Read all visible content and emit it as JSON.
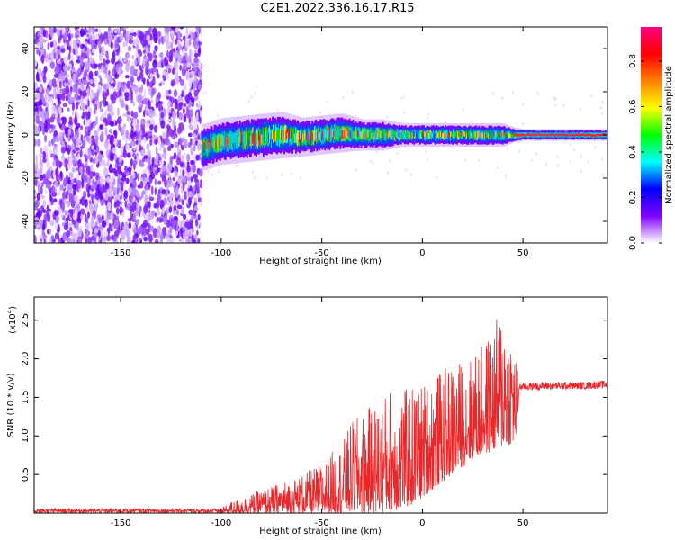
{
  "page_title": "C2E1.2022.336.16.17.R15",
  "chart_data": [
    {
      "type": "heatmap",
      "title": "C2E1.2022.336.16.17.R15",
      "xlabel": "Height of straight line (km)",
      "ylabel": "Frequency (Hz)",
      "xlim": [
        -193,
        92
      ],
      "ylim": [
        -50,
        50
      ],
      "xticks": [
        -150,
        -100,
        -50,
        0,
        50
      ],
      "yticks": [
        -40,
        -20,
        0,
        20,
        40
      ],
      "noise_region_x": [
        -193,
        -110
      ],
      "signal_band": {
        "x": [
          -110,
          -100,
          -90,
          -80,
          -70,
          -60,
          -50,
          -40,
          -30,
          -20,
          -10,
          0,
          10,
          20,
          30,
          40,
          45,
          50,
          60,
          70,
          80,
          90
        ],
        "center_hz": [
          -6,
          -3,
          -2,
          -1,
          0,
          -1,
          0,
          1,
          0,
          0,
          0,
          0,
          0,
          0,
          0,
          0,
          0,
          0,
          0,
          0,
          0,
          0
        ],
        "halfwidth_hz": [
          6,
          6,
          6,
          6,
          6,
          5,
          5,
          5,
          4,
          4,
          3,
          3,
          3,
          3,
          3,
          3,
          2,
          1.5,
          1.5,
          1.5,
          1.5,
          1.5
        ]
      },
      "colorbar": {
        "label": "Normalized spectral amplitude",
        "ticks": [
          0.0,
          0.2,
          0.4,
          0.6,
          0.8
        ],
        "colors": [
          "#ffffff",
          "#8000ff",
          "#0000ff",
          "#00ffff",
          "#00ff00",
          "#ffff00",
          "#ff8000",
          "#ff0000",
          "#ff0080"
        ]
      }
    },
    {
      "type": "line",
      "xlabel": "Height of straight line (km)",
      "ylabel": "SNR (10 * v/v)",
      "scale_label": "(x10",
      "scale_exp": "4",
      "scale_close": ")",
      "xlim": [
        -193,
        92
      ],
      "ylim": [
        0,
        2.8
      ],
      "xticks": [
        -150,
        -100,
        -50,
        0,
        50
      ],
      "yticks": [
        0.5,
        1.0,
        1.5,
        2.0,
        2.5
      ],
      "series": [
        {
          "color": "#e8272a",
          "envelope": {
            "x": [
              -193,
              -100,
              -95,
              -90,
              -80,
              -70,
              -60,
              -50,
              -45,
              -40,
              -35,
              -30,
              -25,
              -20,
              -15,
              -10,
              -5,
              0,
              5,
              10,
              15,
              20,
              25,
              30,
              35,
              40,
              45,
              47,
              48,
              60,
              70,
              80,
              92
            ],
            "low": [
              0.0,
              0.0,
              0.0,
              0.0,
              0.0,
              0.0,
              0.0,
              0.0,
              0.0,
              0.0,
              0.0,
              0.0,
              0.0,
              0.0,
              0.02,
              0.05,
              0.1,
              0.2,
              0.3,
              0.4,
              0.5,
              0.6,
              0.7,
              0.75,
              0.8,
              0.85,
              0.9,
              1.0,
              1.55,
              1.55,
              1.56,
              1.56,
              1.57
            ],
            "high": [
              0.06,
              0.06,
              0.15,
              0.2,
              0.3,
              0.4,
              0.5,
              0.65,
              0.8,
              0.9,
              1.2,
              1.3,
              1.4,
              1.5,
              1.7,
              1.6,
              1.65,
              1.7,
              1.8,
              1.85,
              1.95,
              2.0,
              2.05,
              2.2,
              2.4,
              2.75,
              2.3,
              2.0,
              1.68,
              1.7,
              1.7,
              1.7,
              1.72
            ]
          }
        }
      ]
    }
  ]
}
